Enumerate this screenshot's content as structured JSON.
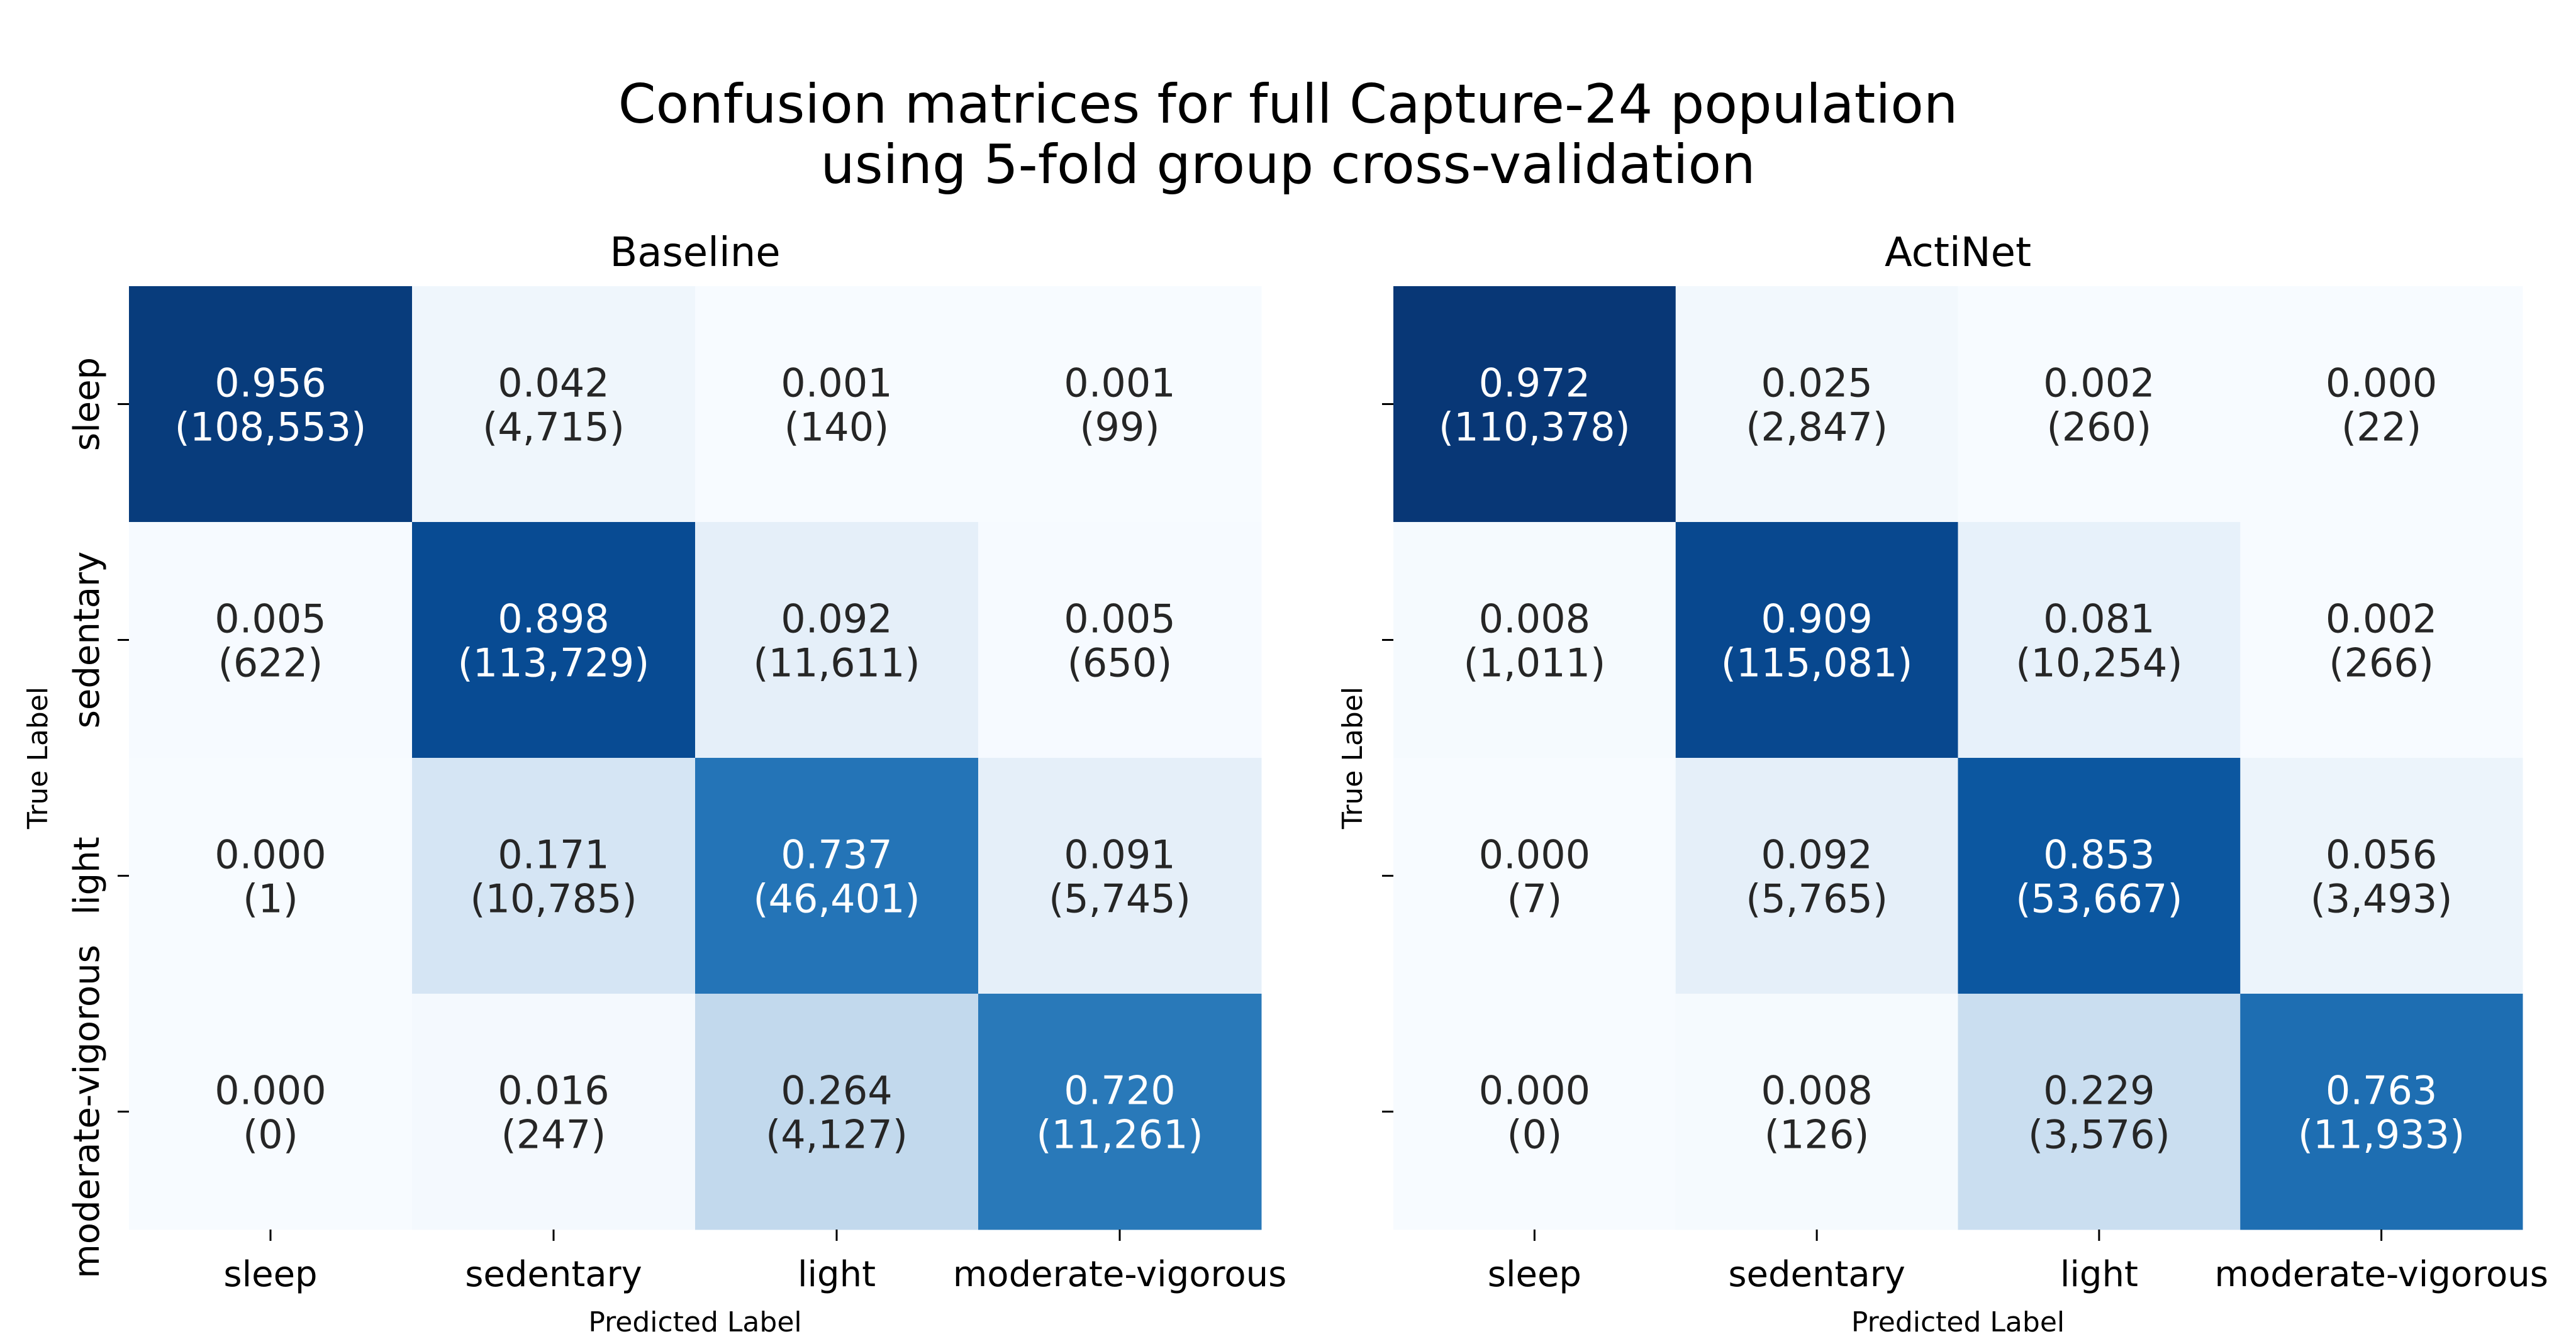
{
  "chart_data": [
    {
      "type": "heatmap",
      "title": "Baseline",
      "xlabel": "Predicted Label",
      "ylabel": "True Label",
      "x_categories": [
        "sleep",
        "sedentary",
        "light",
        "moderate-vigorous"
      ],
      "y_categories": [
        "sleep",
        "sedentary",
        "light",
        "moderate-vigorous"
      ],
      "show_y_tick_labels": true,
      "colormap": "Blues",
      "value_range": [
        0,
        1
      ],
      "values": [
        [
          0.956,
          0.042,
          0.001,
          0.001
        ],
        [
          0.005,
          0.898,
          0.092,
          0.005
        ],
        [
          0.0,
          0.171,
          0.737,
          0.091
        ],
        [
          0.0,
          0.016,
          0.264,
          0.72
        ]
      ],
      "counts": [
        [
          "108,553",
          "4,715",
          "140",
          "99"
        ],
        [
          "622",
          "113,729",
          "11,611",
          "650"
        ],
        [
          "1",
          "10,785",
          "46,401",
          "5,745"
        ],
        [
          "0",
          "247",
          "4,127",
          "11,261"
        ]
      ]
    },
    {
      "type": "heatmap",
      "title": "ActiNet",
      "xlabel": "Predicted Label",
      "ylabel": "True Label",
      "x_categories": [
        "sleep",
        "sedentary",
        "light",
        "moderate-vigorous"
      ],
      "y_categories": [
        "sleep",
        "sedentary",
        "light",
        "moderate-vigorous"
      ],
      "show_y_tick_labels": false,
      "colormap": "Blues",
      "value_range": [
        0,
        1
      ],
      "values": [
        [
          0.972,
          0.025,
          0.002,
          0.0
        ],
        [
          0.008,
          0.909,
          0.081,
          0.002
        ],
        [
          0.0,
          0.092,
          0.853,
          0.056
        ],
        [
          0.0,
          0.008,
          0.229,
          0.763
        ]
      ],
      "counts": [
        [
          "110,378",
          "2,847",
          "260",
          "22"
        ],
        [
          "1,011",
          "115,081",
          "10,254",
          "266"
        ],
        [
          "7",
          "5,765",
          "53,667",
          "3,493"
        ],
        [
          "0",
          "126",
          "3,576",
          "11,933"
        ]
      ]
    }
  ],
  "figure": {
    "suptitle_line1": "Confusion matrices for full Capture-24 population",
    "suptitle_line2": "using 5-fold group cross-validation"
  },
  "colors": {
    "blues_scale": [
      "#f7fbff",
      "#deebf7",
      "#c6dbef",
      "#9ecae1",
      "#6baed6",
      "#4292c6",
      "#2171b5",
      "#08519c",
      "#08306b"
    ],
    "text_dark": "#262626",
    "text_light": "#ffffff"
  }
}
